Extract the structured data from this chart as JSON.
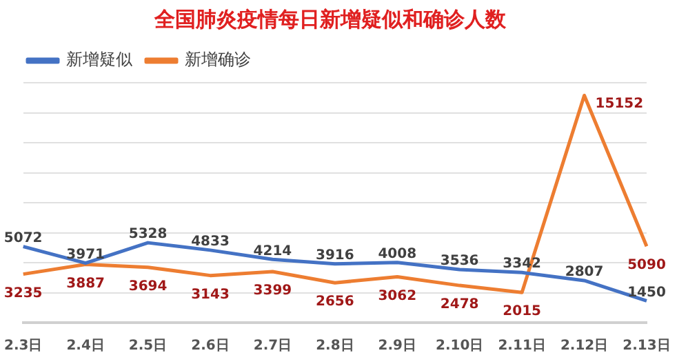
{
  "chart_data": {
    "type": "line",
    "title": "全国肺炎疫情每日新增疑似和确诊人数",
    "categories": [
      "2.3日",
      "2.4日",
      "2.5日",
      "2.6日",
      "2.7日",
      "2.8日",
      "2.9日",
      "2.10日",
      "2.11日",
      "2.12日",
      "2.13日"
    ],
    "series": [
      {
        "name": "新增疑似",
        "color": "#4472c4",
        "values": [
          5072,
          3971,
          5328,
          4833,
          4214,
          3916,
          4008,
          3536,
          3342,
          2807,
          1450
        ]
      },
      {
        "name": "新增确诊",
        "color": "#ed7d31",
        "values": [
          3235,
          3887,
          3694,
          3143,
          3399,
          2656,
          3062,
          2478,
          2015,
          15152,
          5090
        ]
      }
    ],
    "ylim": [
      0,
      16000
    ],
    "yticks": [
      {
        "value": 0,
        "label": null
      },
      {
        "value": 2000,
        "label": null
      },
      {
        "value": 4000,
        "label": null
      },
      {
        "value": 6000,
        "label": null
      },
      {
        "value": 8000,
        "label": null
      },
      {
        "value": 10000,
        "label": null
      },
      {
        "value": 12000,
        "label": null
      },
      {
        "value": 14000,
        "label": null
      },
      {
        "value": 16000,
        "label": null
      }
    ],
    "grid": "y",
    "legend": "top left",
    "tick_labels": "x",
    "data_labels": true,
    "marker": "none",
    "line_style": "solid"
  }
}
